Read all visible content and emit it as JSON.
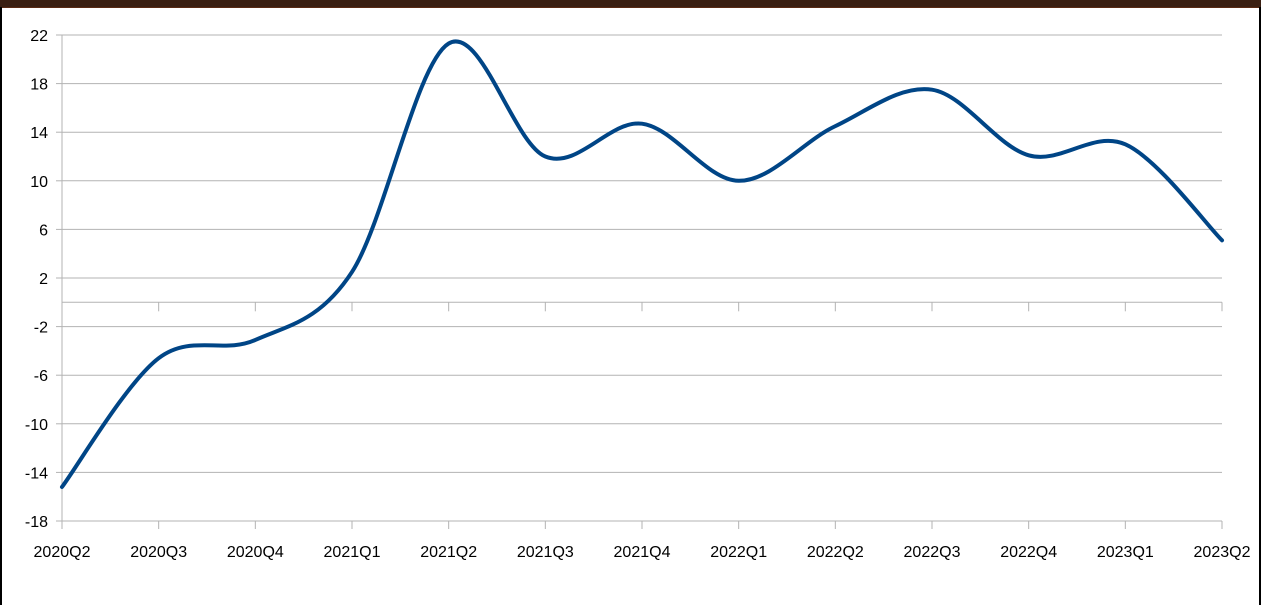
{
  "window": {
    "title": ""
  },
  "chart_data": {
    "type": "line",
    "title": "",
    "xlabel": "",
    "ylabel": "",
    "categories": [
      "2020Q2",
      "2020Q3",
      "2020Q4",
      "2021Q1",
      "2021Q2",
      "2021Q3",
      "2021Q4",
      "2022Q1",
      "2022Q2",
      "2022Q3",
      "2022Q4",
      "2023Q1",
      "2023Q2"
    ],
    "series": [
      {
        "name": "",
        "color": "#004586",
        "values": [
          -15.2,
          -4.6,
          -3.1,
          2.5,
          21.3,
          12.0,
          14.7,
          10.0,
          14.5,
          17.5,
          12.1,
          13.0,
          5.1
        ]
      }
    ],
    "yticks": [
      22,
      18,
      14,
      10,
      6,
      2,
      -2,
      -6,
      -10,
      -14,
      -18
    ],
    "ylim": [
      -18,
      22
    ],
    "grid": true,
    "legend": "none",
    "smooth": true
  }
}
